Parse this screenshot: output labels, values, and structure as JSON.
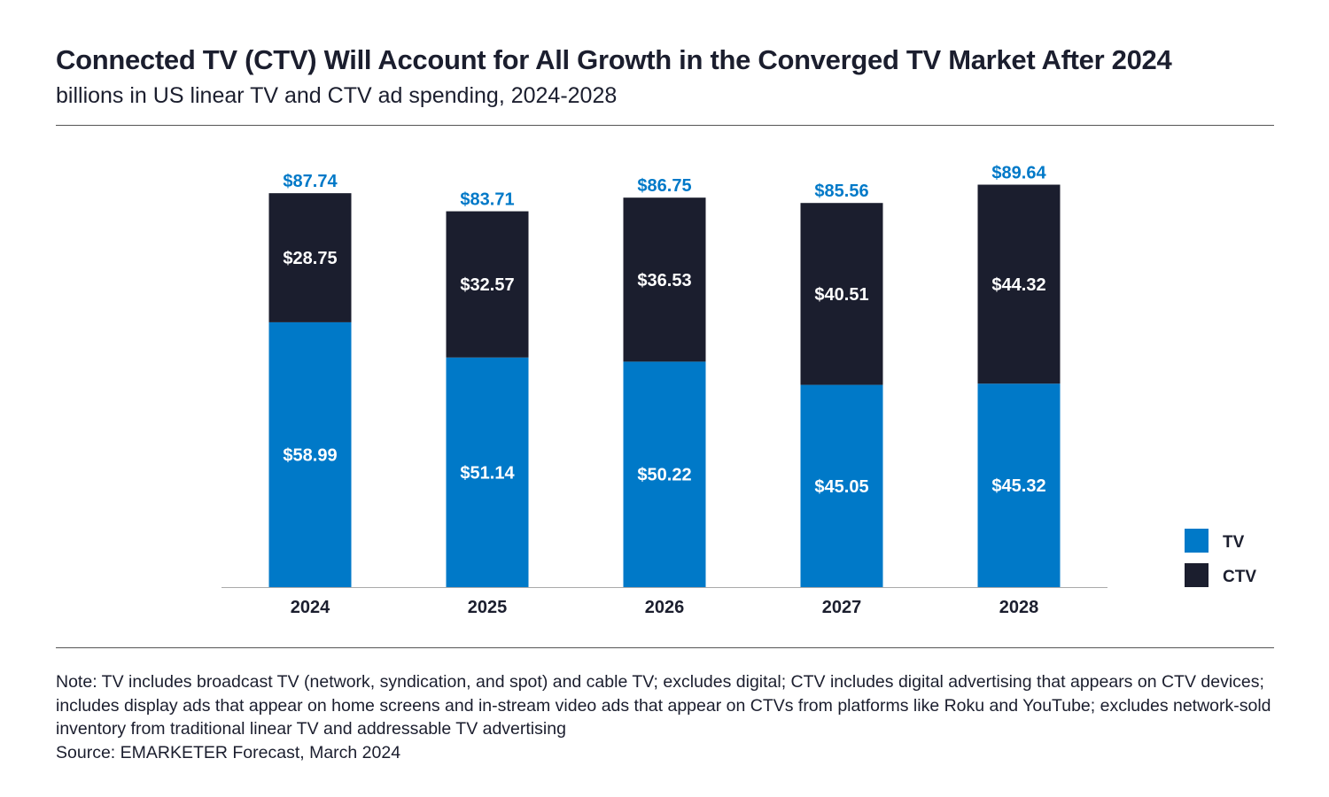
{
  "header": {
    "title": "Connected TV (CTV) Will Account for All Growth in the Converged TV Market After 2024",
    "subtitle": "billions in US linear TV and CTV ad spending, 2024-2028"
  },
  "footer": {
    "note": "Note: TV includes broadcast TV (network, syndication, and spot) and cable TV; excludes digital; CTV includes digital advertising that appears on CTV devices; includes display ads that appear on home screens and in-stream video ads that appear on CTVs from platforms like Roku and YouTube; excludes network-sold inventory from traditional linear TV and addressable TV advertising",
    "source": "Source: EMARKETER Forecast, March 2024"
  },
  "colors": {
    "tv": "#0079c8",
    "ctv": "#1b1e2e",
    "total_label": "#0079c8",
    "segment_label": "#ffffff",
    "axis": "#aaaaaa"
  },
  "chart_data": {
    "type": "bar",
    "stacked": true,
    "title": "Connected TV (CTV) Will Account for All Growth in the Converged TV Market After 2024",
    "subtitle": "billions in US linear TV and CTV ad spending, 2024-2028",
    "categories": [
      "2024",
      "2025",
      "2026",
      "2027",
      "2028"
    ],
    "series": [
      {
        "name": "TV",
        "values": [
          58.99,
          51.14,
          50.22,
          45.05,
          45.32
        ],
        "labels": [
          "$58.99",
          "$51.14",
          "$50.22",
          "$45.05",
          "$45.32"
        ]
      },
      {
        "name": "CTV",
        "values": [
          28.75,
          32.57,
          36.53,
          40.51,
          44.32
        ],
        "labels": [
          "$28.75",
          "$32.57",
          "$36.53",
          "$40.51",
          "$44.32"
        ]
      }
    ],
    "totals": [
      87.74,
      83.71,
      86.75,
      85.56,
      89.64
    ],
    "total_labels": [
      "$87.74",
      "$83.71",
      "$86.75",
      "$85.56",
      "$89.64"
    ],
    "ylim": [
      0,
      100
    ],
    "grid": false,
    "legend": "right",
    "xlabel": "",
    "ylabel": ""
  }
}
